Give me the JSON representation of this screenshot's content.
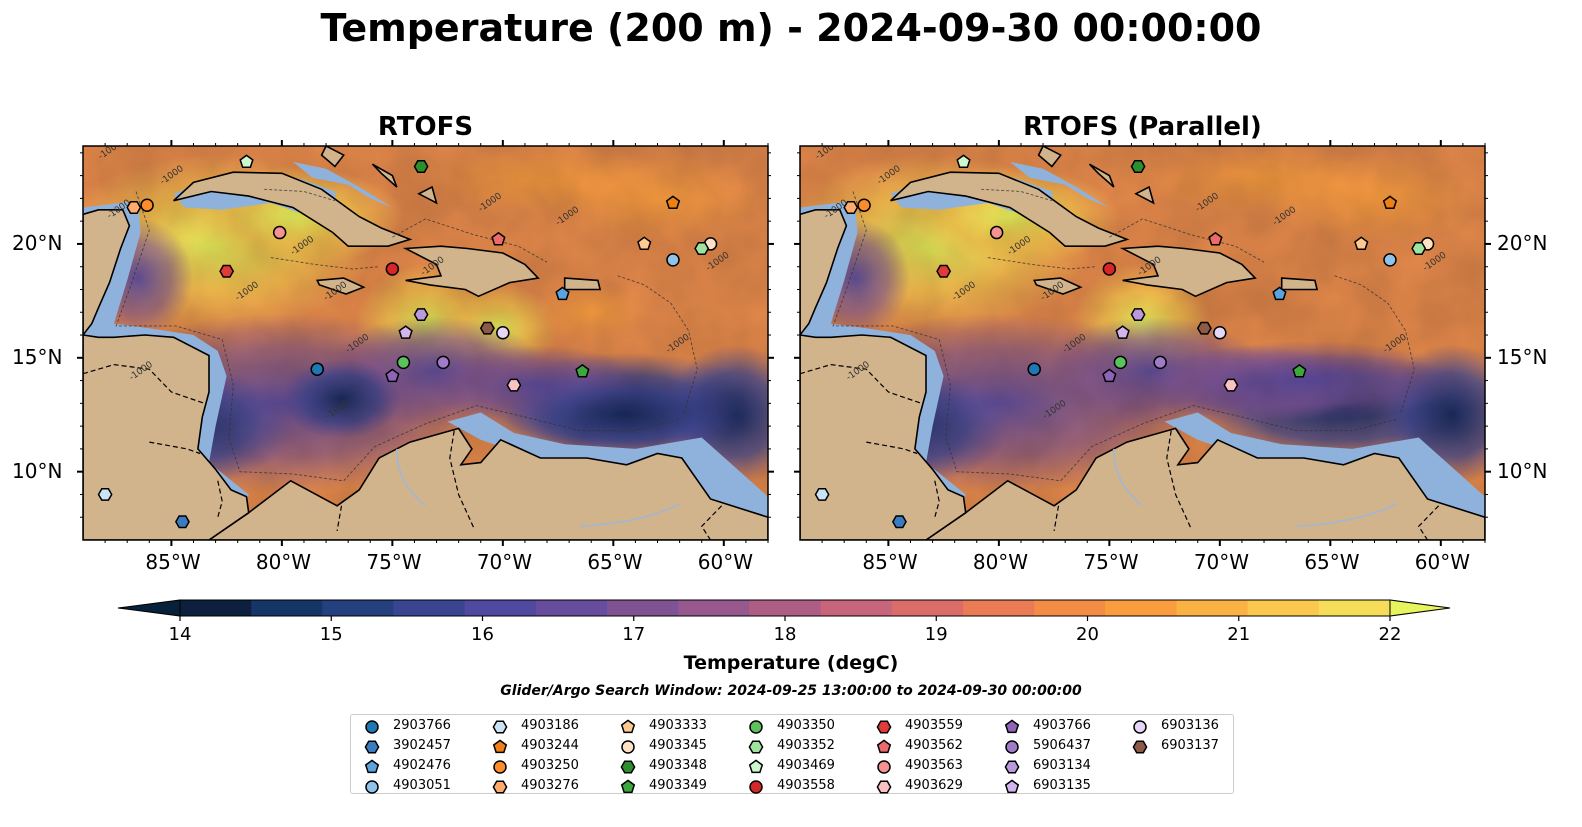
{
  "title": "Temperature (200 m) - 2024-09-30 00:00:00",
  "panels": [
    {
      "title": "RTOFS"
    },
    {
      "title": "RTOFS (Parallel)"
    }
  ],
  "map": {
    "lon_range": [
      -89,
      -58
    ],
    "lat_range": [
      7,
      24.3
    ],
    "lon_ticks": [
      -85,
      -80,
      -75,
      -70,
      -65,
      -60
    ],
    "lon_tick_labels": [
      "85°W",
      "80°W",
      "75°W",
      "70°W",
      "65°W",
      "60°W"
    ],
    "lat_ticks": [
      10,
      15,
      20
    ],
    "lat_tick_labels": [
      "10°N",
      "15°N",
      "20°N"
    ],
    "contour_label": "-1000",
    "land_color": "#d2b48c",
    "shelf_color": "#8fb2dd"
  },
  "colorbar": {
    "label": "Temperature (degC)",
    "ticks": [
      14,
      15,
      16,
      17,
      18,
      19,
      20,
      21,
      22
    ],
    "tick_labels": [
      "14",
      "15",
      "16",
      "17",
      "18",
      "19",
      "20",
      "21",
      "22"
    ],
    "colors": [
      "#0c1f3d",
      "#163567",
      "#25407e",
      "#3a4591",
      "#4f4a9f",
      "#674d9d",
      "#7f5294",
      "#97588e",
      "#ae5e85",
      "#c6657b",
      "#da6c69",
      "#ea7b54",
      "#f38c45",
      "#f99d3e",
      "#fbb244",
      "#fbc84f",
      "#f5dd5a"
    ],
    "under_color": "#08213a",
    "over_color": "#e6f55e"
  },
  "search_window": "Glider/Argo Search Window: 2024-09-25 13:00:00 to 2024-09-30 00:00:00",
  "legend": [
    {
      "id": "2903766",
      "color": "#1f77b4",
      "marker": "circle"
    },
    {
      "id": "3902457",
      "color": "#3b7bbf",
      "marker": "hexagon"
    },
    {
      "id": "4902476",
      "color": "#5ba3dc",
      "marker": "pentagon"
    },
    {
      "id": "4903051",
      "color": "#8fc3ea",
      "marker": "circle"
    },
    {
      "id": "4903186",
      "color": "#c8e4f5",
      "marker": "hexagon"
    },
    {
      "id": "4903244",
      "color": "#f07f16",
      "marker": "pentagon"
    },
    {
      "id": "4903250",
      "color": "#ff8c2a",
      "marker": "circle"
    },
    {
      "id": "4903276",
      "color": "#ffab6b",
      "marker": "hexagon"
    },
    {
      "id": "4903333",
      "color": "#ffc993",
      "marker": "pentagon"
    },
    {
      "id": "4903345",
      "color": "#ffe2c6",
      "marker": "circle"
    },
    {
      "id": "4903348",
      "color": "#2c8f2c",
      "marker": "hexagon"
    },
    {
      "id": "4903349",
      "color": "#3da83d",
      "marker": "pentagon"
    },
    {
      "id": "4903350",
      "color": "#5cc25c",
      "marker": "circle"
    },
    {
      "id": "4903352",
      "color": "#9ee39e",
      "marker": "hexagon"
    },
    {
      "id": "4903469",
      "color": "#cdf7cd",
      "marker": "pentagon"
    },
    {
      "id": "4903558",
      "color": "#d62728",
      "marker": "circle"
    },
    {
      "id": "4903559",
      "color": "#e03a3a",
      "marker": "hexagon"
    },
    {
      "id": "4903562",
      "color": "#ee6a6a",
      "marker": "pentagon"
    },
    {
      "id": "4903563",
      "color": "#f59393",
      "marker": "circle"
    },
    {
      "id": "4903629",
      "color": "#fbc2c2",
      "marker": "hexagon"
    },
    {
      "id": "4903766",
      "color": "#8e63b8",
      "marker": "pentagon"
    },
    {
      "id": "5906437",
      "color": "#a07cc8",
      "marker": "circle"
    },
    {
      "id": "6903134",
      "color": "#bb99dd",
      "marker": "hexagon"
    },
    {
      "id": "6903135",
      "color": "#d1b5ec",
      "marker": "pentagon"
    },
    {
      "id": "6903136",
      "color": "#e5d6f7",
      "marker": "circle"
    },
    {
      "id": "6903137",
      "color": "#8c5a47",
      "marker": "hexagon"
    }
  ],
  "observations": [
    {
      "id": "2903766",
      "lon": -78.4,
      "lat": 14.5
    },
    {
      "id": "3902457",
      "lon": -84.5,
      "lat": 7.8
    },
    {
      "id": "4902476",
      "lon": -67.3,
      "lat": 17.8
    },
    {
      "id": "4903051",
      "lon": -62.3,
      "lat": 19.3
    },
    {
      "id": "4903186",
      "lon": -88.0,
      "lat": 9.0
    },
    {
      "id": "4903244",
      "lon": -62.3,
      "lat": 21.8
    },
    {
      "id": "4903250",
      "lon": -86.1,
      "lat": 21.7
    },
    {
      "id": "4903276",
      "lon": -86.7,
      "lat": 21.6
    },
    {
      "id": "4903333",
      "lon": -63.6,
      "lat": 20.0
    },
    {
      "id": "4903345",
      "lon": -60.6,
      "lat": 20.0
    },
    {
      "id": "4903348",
      "lon": -73.7,
      "lat": 23.4
    },
    {
      "id": "4903349",
      "lon": -66.4,
      "lat": 14.4
    },
    {
      "id": "4903350",
      "lon": -74.5,
      "lat": 14.8
    },
    {
      "id": "4903352",
      "lon": -61.0,
      "lat": 19.8
    },
    {
      "id": "4903469",
      "lon": -81.6,
      "lat": 23.6
    },
    {
      "id": "4903558",
      "lon": -75.0,
      "lat": 18.9
    },
    {
      "id": "4903559",
      "lon": -82.5,
      "lat": 18.8
    },
    {
      "id": "4903562",
      "lon": -70.2,
      "lat": 20.2
    },
    {
      "id": "4903563",
      "lon": -80.1,
      "lat": 20.5
    },
    {
      "id": "4903629",
      "lon": -69.5,
      "lat": 13.8
    },
    {
      "id": "4903766",
      "lon": -75.0,
      "lat": 14.2
    },
    {
      "id": "5906437",
      "lon": -72.7,
      "lat": 14.8
    },
    {
      "id": "6903134",
      "lon": -73.7,
      "lat": 16.9
    },
    {
      "id": "6903135",
      "lon": -74.4,
      "lat": 16.1
    },
    {
      "id": "6903136",
      "lon": -70.0,
      "lat": 16.1
    },
    {
      "id": "6903137",
      "lon": -70.7,
      "lat": 16.3
    }
  ]
}
